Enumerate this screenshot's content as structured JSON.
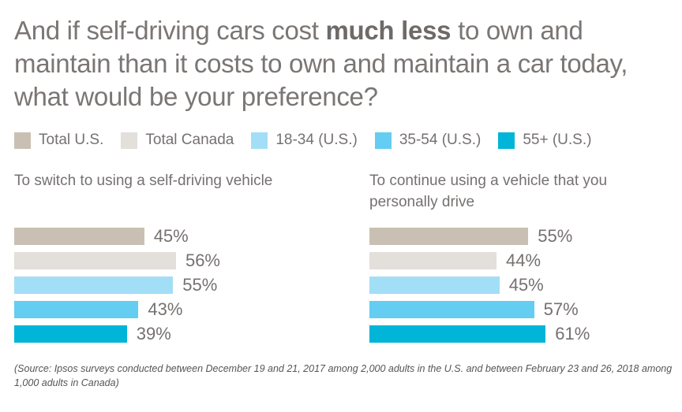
{
  "chart_data": {
    "type": "bar",
    "orientation": "horizontal",
    "title": {
      "before": "And if self-driving cars cost ",
      "bold": "much less",
      "after": " to own and maintain than it costs to own and maintain a car today, what would be your preference?"
    },
    "legend_position": "top",
    "series": [
      {
        "name": "Total U.S.",
        "color": "#c9c0b3"
      },
      {
        "name": "Total Canada",
        "color": "#e3dfda"
      },
      {
        "name": "18-34 (U.S.)",
        "color": "#a3def7"
      },
      {
        "name": "35-54 (U.S.)",
        "color": "#63cdf2"
      },
      {
        "name": "55+ (U.S.)",
        "color": "#00b5d8"
      }
    ],
    "panels": [
      {
        "title": "To switch to using a self-driving vehicle",
        "values": [
          45,
          56,
          55,
          43,
          39
        ],
        "labels": [
          "45%",
          "56%",
          "55%",
          "43%",
          "39%"
        ]
      },
      {
        "title": "To continue using a vehicle that you personally drive",
        "values": [
          55,
          44,
          45,
          57,
          61
        ],
        "labels": [
          "55%",
          "44%",
          "45%",
          "57%",
          "61%"
        ]
      }
    ],
    "grid": false,
    "source": "(Source: Ipsos surveys conducted between December 19 and 21, 2017 among 2,000 adults in the U.S. and between February 23 and 26, 2018 among 1,000 adults in Canada)"
  }
}
